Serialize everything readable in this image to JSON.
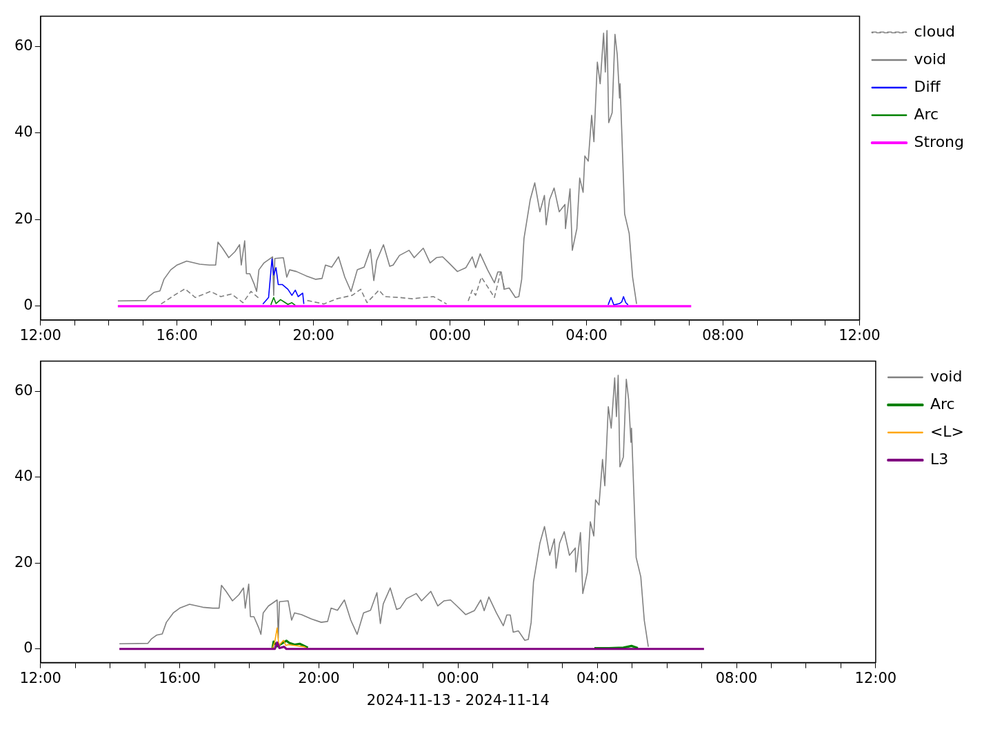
{
  "chart_data": [
    {
      "type": "line",
      "xlim": [
        "2024-11-13T12:00",
        "2024-11-14T12:00"
      ],
      "xticks": [
        {
          "value": "2024-11-13T12:00",
          "label": "12:00"
        },
        {
          "value": "2024-11-13T13:00",
          "label": null
        },
        {
          "value": "2024-11-13T14:00",
          "label": null
        },
        {
          "value": "2024-11-13T15:00",
          "label": null
        },
        {
          "value": "2024-11-13T16:00",
          "label": "16:00"
        },
        {
          "value": "2024-11-13T17:00",
          "label": null
        },
        {
          "value": "2024-11-13T18:00",
          "label": null
        },
        {
          "value": "2024-11-13T19:00",
          "label": null
        },
        {
          "value": "2024-11-13T20:00",
          "label": "20:00"
        },
        {
          "value": "2024-11-13T21:00",
          "label": null
        },
        {
          "value": "2024-11-13T22:00",
          "label": null
        },
        {
          "value": "2024-11-13T23:00",
          "label": null
        },
        {
          "value": "2024-11-14T00:00",
          "label": "00:00"
        },
        {
          "value": "2024-11-14T01:00",
          "label": null
        },
        {
          "value": "2024-11-14T02:00",
          "label": null
        },
        {
          "value": "2024-11-14T03:00",
          "label": null
        },
        {
          "value": "2024-11-14T04:00",
          "label": "04:00"
        },
        {
          "value": "2024-11-14T05:00",
          "label": null
        },
        {
          "value": "2024-11-14T06:00",
          "label": null
        },
        {
          "value": "2024-11-14T07:00",
          "label": null
        },
        {
          "value": "2024-11-14T08:00",
          "label": "08:00"
        },
        {
          "value": "2024-11-14T09:00",
          "label": null
        },
        {
          "value": "2024-11-14T10:00",
          "label": null
        },
        {
          "value": "2024-11-14T11:00",
          "label": null
        },
        {
          "value": "2024-11-14T12:00",
          "label": "12:00"
        }
      ],
      "ylim": [
        -3.19,
        66.99
      ],
      "yticks": [
        0,
        20,
        40,
        60
      ],
      "grid": false,
      "legend": "top right",
      "series": [
        {
          "name": "cloud",
          "color": "#808080",
          "line_style": "dashed",
          "x": [
            "2024-11-13T15:32",
            "2024-11-13T15:55",
            "2024-11-13T16:14",
            "2024-11-13T16:32",
            "2024-11-13T16:59",
            "2024-11-13T17:17",
            "2024-11-13T17:36",
            "2024-11-13T17:56",
            "2024-11-13T18:10",
            "2024-11-13T18:25",
            "2024-11-13T19:00",
            "2024-11-13T19:49",
            "2024-11-13T20:18",
            "2024-11-13T20:41",
            "2024-11-13T21:08",
            "2024-11-13T21:23",
            "2024-11-13T21:34",
            "2024-11-13T21:55",
            "2024-11-13T22:05",
            "2024-11-13T22:31",
            "2024-11-13T22:54",
            "2024-11-13T23:13",
            "2024-11-13T23:31",
            "2024-11-13T23:54",
            "2024-11-14T00:15",
            "2024-11-14T00:32",
            "2024-11-14T00:39",
            "2024-11-14T00:45",
            "2024-11-14T00:55",
            "2024-11-14T01:06",
            "2024-11-14T01:18",
            "2024-11-14T01:29",
            "2024-11-14T01:36"
          ],
          "values": [
            0.5,
            2.5,
            4.0,
            2.0,
            3.4,
            2.2,
            2.8,
            0.8,
            3.4,
            1.7,
            null,
            1.3,
            0.5,
            1.7,
            2.5,
            3.9,
            0.8,
            3.7,
            2.2,
            2.0,
            1.7,
            2.0,
            2.2,
            0.5,
            null,
            1.2,
            3.7,
            2.5,
            6.7,
            4.5,
            2.0,
            7.9,
            3.9
          ]
        },
        {
          "name": "void",
          "color": "#808080",
          "x": [
            "2024-11-13T14:16",
            "2024-11-13T15:05",
            "2024-11-13T15:11",
            "2024-11-13T15:20",
            "2024-11-13T15:30",
            "2024-11-13T15:37",
            "2024-11-13T15:49",
            "2024-11-13T16:00",
            "2024-11-13T16:17",
            "2024-11-13T16:40",
            "2024-11-13T16:57",
            "2024-11-13T17:08",
            "2024-11-13T17:12",
            "2024-11-13T17:20",
            "2024-11-13T17:31",
            "2024-11-13T17:42",
            "2024-11-13T17:50",
            "2024-11-13T17:53",
            "2024-11-13T17:59",
            "2024-11-13T18:02",
            "2024-11-13T18:08",
            "2024-11-13T18:16",
            "2024-11-13T18:20",
            "2024-11-13T18:24",
            "2024-11-13T18:33",
            "2024-11-13T18:48",
            "2024-11-13T18:50",
            "2024-11-13T18:52",
            "2024-11-13T19:07",
            "2024-11-13T19:13",
            "2024-11-13T19:18",
            "2024-11-13T19:30",
            "2024-11-13T19:47",
            "2024-11-13T20:04",
            "2024-11-13T20:15",
            "2024-11-13T20:21",
            "2024-11-13T20:32",
            "2024-11-13T20:44",
            "2024-11-13T20:55",
            "2024-11-13T21:06",
            "2024-11-13T21:17",
            "2024-11-13T21:29",
            "2024-11-13T21:40",
            "2024-11-13T21:46",
            "2024-11-13T21:51",
            "2024-11-13T22:03",
            "2024-11-13T22:14",
            "2024-11-13T22:20",
            "2024-11-13T22:31",
            "2024-11-13T22:48",
            "2024-11-13T22:57",
            "2024-11-13T23:13",
            "2024-11-13T23:25",
            "2024-11-13T23:36",
            "2024-11-13T23:47",
            "2024-11-13T23:58",
            "2024-11-14T00:13",
            "2024-11-14T00:28",
            "2024-11-14T00:39",
            "2024-11-14T00:45",
            "2024-11-14T00:53",
            "2024-11-14T01:06",
            "2024-11-14T01:18",
            "2024-11-14T01:24",
            "2024-11-14T01:30",
            "2024-11-14T01:35",
            "2024-11-14T01:44",
            "2024-11-14T01:55",
            "2024-11-14T02:01",
            "2024-11-14T02:06",
            "2024-11-14T02:10",
            "2024-11-14T02:21",
            "2024-11-14T02:29",
            "2024-11-14T02:38",
            "2024-11-14T02:46",
            "2024-11-14T02:49",
            "2024-11-14T02:55",
            "2024-11-14T03:03",
            "2024-11-14T03:12",
            "2024-11-14T03:22",
            "2024-11-14T03:23",
            "2024-11-14T03:31",
            "2024-11-14T03:35",
            "2024-11-14T03:43",
            "2024-11-14T03:48",
            "2024-11-14T03:54",
            "2024-11-14T03:57",
            "2024-11-14T04:03",
            "2024-11-14T04:09",
            "2024-11-14T04:13",
            "2024-11-14T04:19",
            "2024-11-14T04:24",
            "2024-11-14T04:30",
            "2024-11-14T04:33",
            "2024-11-14T04:36",
            "2024-11-14T04:39",
            "2024-11-14T04:45",
            "2024-11-14T04:50",
            "2024-11-14T04:54",
            "2024-11-14T04:58",
            "2024-11-14T04:59",
            "2024-11-14T05:07",
            "2024-11-14T05:15",
            "2024-11-14T05:21",
            "2024-11-14T05:28"
          ],
          "values": [
            1.2,
            1.3,
            2.3,
            3.2,
            3.5,
            6.2,
            8.4,
            9.5,
            10.4,
            9.7,
            9.5,
            9.5,
            14.8,
            13.4,
            11.2,
            12.6,
            14.2,
            9.5,
            15.1,
            7.5,
            7.5,
            5.0,
            3.4,
            8.4,
            10.0,
            11.4,
            2.5,
            11.0,
            11.2,
            6.7,
            8.4,
            8.0,
            7.0,
            6.2,
            6.4,
            9.5,
            9.0,
            11.4,
            6.7,
            3.4,
            8.4,
            9.0,
            13.1,
            5.9,
            10.5,
            14.2,
            9.2,
            9.5,
            11.7,
            12.9,
            11.2,
            13.4,
            10.0,
            11.2,
            11.4,
            10.0,
            8.0,
            8.9,
            11.4,
            8.9,
            12.1,
            8.4,
            5.4,
            7.9,
            7.9,
            3.9,
            4.2,
            2.0,
            2.2,
            6.2,
            15.6,
            24.6,
            28.5,
            21.8,
            25.6,
            18.8,
            24.6,
            27.3,
            21.8,
            23.5,
            17.9,
            27.1,
            12.9,
            17.9,
            29.6,
            26.3,
            34.7,
            33.5,
            44.1,
            38.0,
            56.4,
            51.4,
            63.1,
            54.1,
            63.7,
            42.4,
            44.7,
            62.8,
            58.1,
            48.1,
            51.4,
            21.3,
            16.8,
            6.7,
            0.5
          ]
        },
        {
          "name": "Diff",
          "color": "#0000ff",
          "x": [
            "2024-11-13T18:31",
            "2024-11-13T18:41",
            "2024-11-13T18:47",
            "2024-11-13T18:50",
            "2024-11-13T18:54",
            "2024-11-13T18:58",
            "2024-11-13T19:05",
            "2024-11-13T19:15",
            "2024-11-13T19:22",
            "2024-11-13T19:28",
            "2024-11-13T19:33",
            "2024-11-13T19:41",
            "2024-11-13T19:43",
            "2024-11-13T23:00",
            "2024-11-14T04:38",
            "2024-11-14T04:43",
            "2024-11-14T04:48",
            "2024-11-14T04:58",
            "2024-11-14T05:02",
            "2024-11-14T05:05",
            "2024-11-14T05:09",
            "2024-11-14T05:13"
          ],
          "values": [
            0.5,
            2.0,
            10.9,
            7.2,
            8.9,
            5.0,
            5.0,
            3.9,
            2.5,
            3.7,
            2.2,
            3.0,
            0.5,
            null,
            0.3,
            2.0,
            0.3,
            0.6,
            1.0,
            2.2,
            0.8,
            0.3
          ]
        },
        {
          "name": "Arc",
          "color": "#008000",
          "x": [
            "2024-11-13T18:45",
            "2024-11-13T18:50",
            "2024-11-13T18:54",
            "2024-11-13T19:02",
            "2024-11-13T19:08",
            "2024-11-13T19:15",
            "2024-11-13T19:22",
            "2024-11-13T19:28"
          ],
          "values": [
            0.3,
            2.0,
            0.6,
            1.5,
            1.0,
            0.4,
            0.8,
            0.2
          ]
        },
        {
          "name": "Strong",
          "color": "#ff00ff",
          "x": [
            "2024-11-13T14:16",
            "2024-11-14T07:04"
          ],
          "values": [
            0,
            0
          ]
        }
      ]
    },
    {
      "type": "line",
      "xlabel": "2024-11-13 - 2024-11-14",
      "xlim": [
        "2024-11-13T12:00",
        "2024-11-14T12:00"
      ],
      "xticks": [
        {
          "value": "2024-11-13T12:00",
          "label": "12:00"
        },
        {
          "value": "2024-11-13T13:00",
          "label": null
        },
        {
          "value": "2024-11-13T14:00",
          "label": null
        },
        {
          "value": "2024-11-13T15:00",
          "label": null
        },
        {
          "value": "2024-11-13T16:00",
          "label": "16:00"
        },
        {
          "value": "2024-11-13T17:00",
          "label": null
        },
        {
          "value": "2024-11-13T18:00",
          "label": null
        },
        {
          "value": "2024-11-13T19:00",
          "label": null
        },
        {
          "value": "2024-11-13T20:00",
          "label": "20:00"
        },
        {
          "value": "2024-11-13T21:00",
          "label": null
        },
        {
          "value": "2024-11-13T22:00",
          "label": null
        },
        {
          "value": "2024-11-13T23:00",
          "label": null
        },
        {
          "value": "2024-11-14T00:00",
          "label": "00:00"
        },
        {
          "value": "2024-11-14T01:00",
          "label": null
        },
        {
          "value": "2024-11-14T02:00",
          "label": null
        },
        {
          "value": "2024-11-14T03:00",
          "label": null
        },
        {
          "value": "2024-11-14T04:00",
          "label": "04:00"
        },
        {
          "value": "2024-11-14T05:00",
          "label": null
        },
        {
          "value": "2024-11-14T06:00",
          "label": null
        },
        {
          "value": "2024-11-14T07:00",
          "label": null
        },
        {
          "value": "2024-11-14T08:00",
          "label": "08:00"
        },
        {
          "value": "2024-11-14T09:00",
          "label": null
        },
        {
          "value": "2024-11-14T10:00",
          "label": null
        },
        {
          "value": "2024-11-14T11:00",
          "label": null
        },
        {
          "value": "2024-11-14T12:00",
          "label": "12:00"
        }
      ],
      "ylim": [
        -3.19,
        66.99
      ],
      "yticks": [
        0,
        20,
        40,
        60
      ],
      "grid": false,
      "legend": "top right",
      "series": [
        {
          "name": "void",
          "color": "#808080",
          "x": [
            "2024-11-13T14:16",
            "2024-11-13T15:05",
            "2024-11-13T15:11",
            "2024-11-13T15:20",
            "2024-11-13T15:30",
            "2024-11-13T15:37",
            "2024-11-13T15:49",
            "2024-11-13T16:00",
            "2024-11-13T16:17",
            "2024-11-13T16:40",
            "2024-11-13T16:57",
            "2024-11-13T17:08",
            "2024-11-13T17:12",
            "2024-11-13T17:20",
            "2024-11-13T17:31",
            "2024-11-13T17:42",
            "2024-11-13T17:50",
            "2024-11-13T17:53",
            "2024-11-13T17:59",
            "2024-11-13T18:02",
            "2024-11-13T18:08",
            "2024-11-13T18:16",
            "2024-11-13T18:20",
            "2024-11-13T18:24",
            "2024-11-13T18:33",
            "2024-11-13T18:48",
            "2024-11-13T18:50",
            "2024-11-13T18:52",
            "2024-11-13T19:07",
            "2024-11-13T19:13",
            "2024-11-13T19:18",
            "2024-11-13T19:30",
            "2024-11-13T19:47",
            "2024-11-13T20:04",
            "2024-11-13T20:15",
            "2024-11-13T20:21",
            "2024-11-13T20:32",
            "2024-11-13T20:44",
            "2024-11-13T20:55",
            "2024-11-13T21:06",
            "2024-11-13T21:17",
            "2024-11-13T21:29",
            "2024-11-13T21:40",
            "2024-11-13T21:46",
            "2024-11-13T21:51",
            "2024-11-13T22:03",
            "2024-11-13T22:14",
            "2024-11-13T22:20",
            "2024-11-13T22:31",
            "2024-11-13T22:48",
            "2024-11-13T22:57",
            "2024-11-13T23:13",
            "2024-11-13T23:25",
            "2024-11-13T23:36",
            "2024-11-13T23:47",
            "2024-11-13T23:58",
            "2024-11-14T00:13",
            "2024-11-14T00:28",
            "2024-11-14T00:39",
            "2024-11-14T00:45",
            "2024-11-14T00:53",
            "2024-11-14T01:06",
            "2024-11-14T01:18",
            "2024-11-14T01:24",
            "2024-11-14T01:30",
            "2024-11-14T01:35",
            "2024-11-14T01:44",
            "2024-11-14T01:55",
            "2024-11-14T02:01",
            "2024-11-14T02:06",
            "2024-11-14T02:10",
            "2024-11-14T02:21",
            "2024-11-14T02:29",
            "2024-11-14T02:38",
            "2024-11-14T02:46",
            "2024-11-14T02:49",
            "2024-11-14T02:55",
            "2024-11-14T03:03",
            "2024-11-14T03:12",
            "2024-11-14T03:22",
            "2024-11-14T03:23",
            "2024-11-14T03:31",
            "2024-11-14T03:35",
            "2024-11-14T03:43",
            "2024-11-14T03:48",
            "2024-11-14T03:54",
            "2024-11-14T03:57",
            "2024-11-14T04:03",
            "2024-11-14T04:09",
            "2024-11-14T04:13",
            "2024-11-14T04:19",
            "2024-11-14T04:24",
            "2024-11-14T04:30",
            "2024-11-14T04:33",
            "2024-11-14T04:36",
            "2024-11-14T04:39",
            "2024-11-14T04:45",
            "2024-11-14T04:50",
            "2024-11-14T04:54",
            "2024-11-14T04:58",
            "2024-11-14T04:59",
            "2024-11-14T05:07",
            "2024-11-14T05:15",
            "2024-11-14T05:21",
            "2024-11-14T05:28"
          ],
          "values": [
            1.2,
            1.3,
            2.3,
            3.2,
            3.5,
            6.2,
            8.4,
            9.5,
            10.4,
            9.7,
            9.5,
            9.5,
            14.8,
            13.4,
            11.2,
            12.6,
            14.2,
            9.5,
            15.1,
            7.5,
            7.5,
            5.0,
            3.4,
            8.4,
            10.0,
            11.4,
            2.5,
            11.0,
            11.2,
            6.7,
            8.4,
            8.0,
            7.0,
            6.2,
            6.4,
            9.5,
            9.0,
            11.4,
            6.7,
            3.4,
            8.4,
            9.0,
            13.1,
            5.9,
            10.5,
            14.2,
            9.2,
            9.5,
            11.7,
            12.9,
            11.2,
            13.4,
            10.0,
            11.2,
            11.4,
            10.0,
            8.0,
            8.9,
            11.4,
            8.9,
            12.1,
            8.4,
            5.4,
            7.9,
            7.9,
            3.9,
            4.2,
            2.0,
            2.2,
            6.2,
            15.6,
            24.6,
            28.5,
            21.8,
            25.6,
            18.8,
            24.6,
            27.3,
            21.8,
            23.5,
            17.9,
            27.1,
            12.9,
            17.9,
            29.6,
            26.3,
            34.7,
            33.5,
            44.1,
            38.0,
            56.4,
            51.4,
            63.1,
            54.1,
            63.7,
            42.4,
            44.7,
            62.8,
            58.1,
            48.1,
            51.4,
            21.3,
            16.8,
            6.7,
            0.5
          ]
        },
        {
          "name": "Arc",
          "color": "#008000",
          "x": [
            "2024-11-13T18:40",
            "2024-11-13T18:42",
            "2024-11-13T18:48",
            "2024-11-13T19:04",
            "2024-11-13T19:09",
            "2024-11-13T19:18",
            "2024-11-13T19:27",
            "2024-11-13T19:41",
            "2024-11-13T23:00",
            "2024-11-14T03:55",
            "2024-11-14T04:20",
            "2024-11-14T04:45",
            "2024-11-14T04:59",
            "2024-11-14T05:10"
          ],
          "values": [
            0.2,
            1.7,
            0.6,
            1.9,
            1.4,
            1.0,
            1.2,
            0.3,
            null,
            0.2,
            0.2,
            0.3,
            0.7,
            0.2
          ]
        },
        {
          "name": "<L>",
          "color": "#ffa500",
          "x": [
            "2024-11-13T18:40",
            "2024-11-13T18:44",
            "2024-11-13T18:48",
            "2024-11-13T18:51",
            "2024-11-13T18:59",
            "2024-11-13T19:03",
            "2024-11-13T19:07",
            "2024-11-13T19:35",
            "2024-11-13T19:40"
          ],
          "values": [
            0.2,
            1.7,
            4.9,
            0.8,
            2.0,
            0.8,
            1.0,
            0.5,
            0.1
          ]
        },
        {
          "name": "L3",
          "color": "#800080",
          "x": [
            "2024-11-13T14:16",
            "2024-11-13T18:44",
            "2024-11-13T18:48",
            "2024-11-13T18:52",
            "2024-11-13T19:00",
            "2024-11-13T19:04",
            "2024-11-14T07:04"
          ],
          "values": [
            0,
            0,
            1.5,
            0.2,
            0.5,
            0,
            0
          ]
        }
      ]
    }
  ]
}
